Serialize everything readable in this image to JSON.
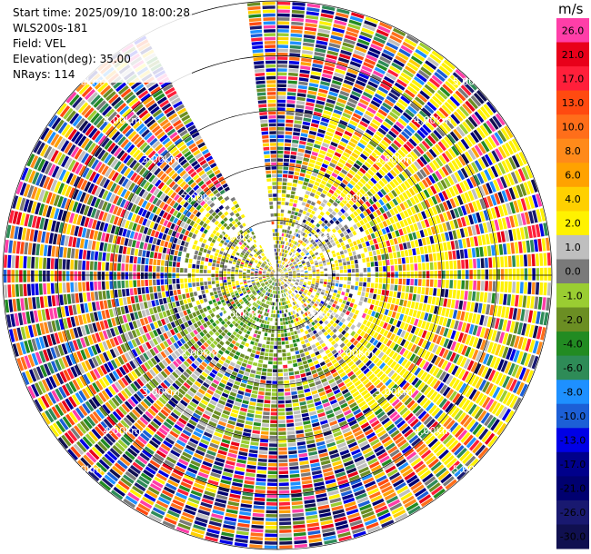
{
  "info": {
    "start_time": "Start time: 2025/09/10 18:00:28",
    "station": "WLS200s-181",
    "field": "Field: VEL",
    "elevation": "Elevation(deg): 35.00",
    "nrays": "NRays: 114"
  },
  "colorbar": {
    "unit": "m/s",
    "levels": [
      {
        "label": "26.0",
        "color": "#ff3ea8"
      },
      {
        "label": "21.0",
        "color": "#e8001a"
      },
      {
        "label": "17.0",
        "color": "#ff1f3a"
      },
      {
        "label": "13.0",
        "color": "#ff4a10"
      },
      {
        "label": "10.0",
        "color": "#ff6e1a"
      },
      {
        "label": "8.0",
        "color": "#ff8a1a"
      },
      {
        "label": "6.0",
        "color": "#ffa200"
      },
      {
        "label": "4.0",
        "color": "#ffd000"
      },
      {
        "label": "2.0",
        "color": "#fff200"
      },
      {
        "label": "1.0",
        "color": "#bfbfbf"
      },
      {
        "label": "0.0",
        "color": "#7a7a7a"
      },
      {
        "label": "-1.0",
        "color": "#9acd32"
      },
      {
        "label": "-2.0",
        "color": "#6b8e23"
      },
      {
        "label": "-4.0",
        "color": "#228b22"
      },
      {
        "label": "-6.0",
        "color": "#2e8b57"
      },
      {
        "label": "-8.0",
        "color": "#1e90ff"
      },
      {
        "label": "-10.0",
        "color": "#1c5fd6"
      },
      {
        "label": "-13.0",
        "color": "#0000e6"
      },
      {
        "label": "-17.0",
        "color": "#00008b"
      },
      {
        "label": "-21.0",
        "color": "#000070"
      },
      {
        "label": "-26.0",
        "color": "#191970"
      },
      {
        "label": "-30.0",
        "color": "#101050"
      }
    ]
  },
  "chart_data": {
    "type": "heatmap",
    "projection": "polar (PPI)",
    "field": "VEL",
    "units": "m/s",
    "range_ring_labels": [
      "1.00km",
      "2.00km",
      "3.00km",
      "4.00km",
      "5.00km"
    ],
    "range_rings_km": [
      1,
      2,
      3,
      4,
      5
    ],
    "max_range_km": 5.0,
    "missing_sector_deg": [
      330,
      355
    ],
    "color_levels": [
      26.0,
      21.0,
      17.0,
      13.0,
      10.0,
      8.0,
      6.0,
      4.0,
      2.0,
      1.0,
      0.0,
      -1.0,
      -2.0,
      -4.0,
      -6.0,
      -8.0,
      -10.0,
      -13.0,
      -17.0,
      -21.0,
      -26.0,
      -30.0
    ]
  }
}
